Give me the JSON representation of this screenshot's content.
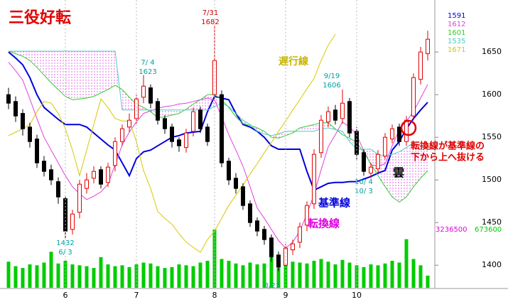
{
  "chart_data": {
    "type": "candlestick",
    "title": "三役好転",
    "categories": [
      null,
      null,
      null,
      null,
      null,
      null,
      null,
      null,
      "6",
      null,
      null,
      null,
      null,
      null,
      null,
      null,
      null,
      null,
      "7",
      null,
      null,
      null,
      null,
      null,
      null,
      null,
      null,
      null,
      null,
      "8",
      null,
      null,
      null,
      null,
      null,
      null,
      null,
      null,
      null,
      "9",
      null,
      null,
      null,
      null,
      null,
      null,
      null,
      null,
      null,
      "10",
      null,
      null,
      null,
      null,
      null,
      null,
      null,
      null,
      null,
      null
    ],
    "open": [
      1600,
      1592,
      1578,
      1562,
      1548,
      1522,
      1512,
      1498,
      1478,
      1442,
      1462,
      1490,
      1502,
      1512,
      1497,
      1517,
      1545,
      1562,
      1572,
      1597,
      1608,
      1592,
      1572,
      1562,
      1547,
      1538,
      1557,
      1582,
      1562,
      1600,
      1600,
      1522,
      1502,
      1492,
      1472,
      1452,
      1442,
      1432,
      1412,
      1400,
      1418,
      1427,
      1447,
      1472,
      1532,
      1568,
      1582,
      1572,
      1592,
      1557,
      1532,
      1508,
      1513,
      1528,
      1548,
      1562,
      1545,
      1575,
      1618,
      1648
    ],
    "high": [
      1608,
      1598,
      1583,
      1567,
      1553,
      1528,
      1518,
      1503,
      1482,
      1465,
      1500,
      1508,
      1516,
      1516,
      1520,
      1550,
      1565,
      1578,
      1600,
      1623,
      1612,
      1596,
      1576,
      1566,
      1550,
      1560,
      1585,
      1586,
      1566,
      1682,
      1605,
      1526,
      1508,
      1496,
      1476,
      1456,
      1446,
      1436,
      1416,
      1425,
      1430,
      1450,
      1475,
      1536,
      1576,
      1586,
      1588,
      1606,
      1596,
      1562,
      1536,
      1520,
      1535,
      1555,
      1565,
      1566,
      1575,
      1625,
      1656,
      1675
    ],
    "low": [
      1583,
      1568,
      1552,
      1538,
      1514,
      1504,
      1494,
      1472,
      1432,
      1436,
      1455,
      1484,
      1496,
      1490,
      1492,
      1510,
      1540,
      1556,
      1566,
      1590,
      1584,
      1565,
      1554,
      1538,
      1533,
      1532,
      1551,
      1555,
      1540,
      1595,
      1515,
      1494,
      1484,
      1465,
      1445,
      1434,
      1424,
      1404,
      1393,
      1396,
      1412,
      1420,
      1440,
      1466,
      1526,
      1562,
      1565,
      1566,
      1550,
      1524,
      1505,
      1502,
      1508,
      1524,
      1543,
      1540,
      1540,
      1570,
      1612,
      1640
    ],
    "close": [
      1590,
      1575,
      1560,
      1545,
      1520,
      1510,
      1500,
      1480,
      1440,
      1460,
      1495,
      1500,
      1510,
      1495,
      1515,
      1545,
      1560,
      1570,
      1595,
      1610,
      1590,
      1570,
      1560,
      1545,
      1540,
      1555,
      1580,
      1560,
      1545,
      1640,
      1520,
      1500,
      1490,
      1470,
      1450,
      1440,
      1430,
      1410,
      1398,
      1420,
      1425,
      1445,
      1470,
      1530,
      1570,
      1580,
      1570,
      1590,
      1555,
      1530,
      1510,
      1515,
      1530,
      1550,
      1560,
      1545,
      1570,
      1620,
      1650,
      1665
    ],
    "up_color": "#e00000",
    "down_color": "#000000",
    "volume": [
      1450000,
      1200000,
      1100000,
      1300000,
      1250000,
      1400000,
      2000000,
      1350000,
      1500000,
      1300000,
      1250000,
      1200000,
      1100000,
      1700000,
      1300000,
      1200000,
      1250000,
      1150000,
      1300000,
      1400000,
      1350000,
      1200000,
      1100000,
      1150000,
      1300000,
      1250000,
      1200000,
      1400000,
      1500000,
      3236500,
      1600000,
      1500000,
      1350000,
      1250000,
      1400000,
      1300000,
      1350000,
      1900000,
      1500000,
      1300000,
      1450000,
      1400000,
      1350000,
      1500000,
      1600000,
      1450000,
      1300000,
      1550000,
      1400000,
      1250000,
      1150000,
      1300000,
      1250000,
      1350000,
      1500000,
      1400000,
      2700000,
      1600000,
      1250000,
      673600
    ],
    "volume_color": "#00cc00",
    "volume_max_color": "#e000e0",
    "ylim": [
      1373,
      1711
    ],
    "yticks": [
      1400,
      1450,
      1500,
      1550,
      1600,
      1650
    ],
    "lines": [
      {
        "legend_value": 1591,
        "color": "#0000dd",
        "width": 2,
        "values": [
          1650,
          1643,
          1635,
          1620,
          1600,
          1585,
          1578,
          1571,
          1565,
          1565,
          1565,
          1562,
          1555,
          1548,
          1541,
          1535,
          1520,
          1505,
          1525,
          1533,
          1535,
          1540,
          1545,
          1550,
          1552,
          1555,
          1556,
          1557,
          1580,
          1598,
          1596,
          1594,
          1578,
          1565,
          1562,
          1557,
          1550,
          1540,
          1536,
          1536,
          1536,
          1536,
          1510,
          1488,
          1492,
          1496,
          1497,
          1497,
          1498,
          1498,
          1501,
          1504,
          1508,
          1511,
          1535,
          1545,
          1560,
          1572,
          1582,
          1591
        ]
      },
      {
        "legend_value": 1612,
        "color": "#e040e0",
        "width": 1,
        "values": [
          1638,
          1628,
          1617,
          1595,
          1572,
          1550,
          1535,
          1520,
          1505,
          1492,
          1484,
          1477,
          1481,
          1486,
          1495,
          1518,
          1541,
          1556,
          1568,
          1578,
          1581,
          1584,
          1586,
          1587,
          1589,
          1590,
          1592,
          1594,
          1596,
          1594,
          1574,
          1553,
          1535,
          1516,
          1492,
          1467,
          1455,
          1442,
          1429,
          1420,
          1427,
          1440,
          1460,
          1483,
          1512,
          1539,
          1553,
          1568,
          1562,
          1553,
          1534,
          1518,
          1516,
          1519,
          1540,
          1559,
          1569,
          1580,
          1596,
          1612
        ]
      },
      {
        "legend_value": 1601,
        "color": "#33cc33",
        "width": 1,
        "values": [
          1651,
          1648,
          1645,
          1640,
          1632,
          1623,
          1614,
          1606,
          1598,
          1594,
          1595,
          1596,
          1598,
          1602,
          1606,
          1611,
          1606,
          1597,
          1589,
          1585,
          1580,
          1573,
          1574,
          1576,
          1578,
          1583,
          1589,
          1594,
          1600,
          1600,
          1594,
          1585,
          1574,
          1566,
          1564,
          1561,
          1557,
          1550,
          1549,
          1552,
          1555,
          1561,
          1563,
          1565,
          1567,
          1567,
          1560,
          1553,
          1549,
          1544,
          1532,
          1519,
          1505,
          1492,
          1480,
          1474,
          1480,
          1492,
          1502,
          1511
        ]
      },
      {
        "legend_value": 1535,
        "color": "#55c8c8",
        "width": 1,
        "values": [
          1651,
          1651,
          1651,
          1651,
          1651,
          1651,
          1651,
          1651,
          1651,
          1651,
          1651,
          1651,
          1651,
          1651,
          1651,
          1651,
          1582,
          1582,
          1582,
          1582,
          1582,
          1582,
          1582,
          1582,
          1582,
          1582,
          1582,
          1582,
          1582,
          1586,
          1590,
          1586,
          1578,
          1570,
          1565,
          1557,
          1554,
          1552,
          1554,
          1557,
          1557,
          1557,
          1557,
          1557,
          1560,
          1561,
          1559,
          1557,
          1545,
          1536,
          1536,
          1536,
          1530,
          1528,
          1530,
          1533,
          1538,
          1544,
          1540,
          1535
        ]
      },
      {
        "legend_value": 1671,
        "color": "#d8c800",
        "width": 1,
        "values": [
          1552,
          1556,
          1560,
          1565,
          1580,
          1592,
          1590,
          1578,
          1560,
          1535,
          1505,
          1535,
          1565,
          1595,
          1585,
          1572,
          1569,
          1569,
          1545,
          1511,
          1490,
          1463,
          1455,
          1448,
          1437,
          1427,
          1421,
          1415,
          1430,
          1440,
          1455,
          1470,
          1482,
          1494,
          1507,
          1519,
          1532,
          1544,
          1557,
          1569,
          1582,
          1594,
          1607,
          1619,
          1640,
          1658,
          1671,
          null,
          null,
          null,
          null,
          null,
          null,
          null,
          null,
          null,
          null,
          null,
          null,
          null
        ]
      }
    ],
    "cloud": {
      "between": [
        2,
        3
      ],
      "color": "#e040e0"
    },
    "annotations": [
      {
        "text": [
          "7/31",
          "1682"
        ],
        "color": "#d00000"
      },
      {
        "text": [
          "7/ 4",
          "1623"
        ],
        "color": "#00a0a0"
      },
      {
        "text": [
          "9/19",
          "1606"
        ],
        "color": "#00a0a0"
      },
      {
        "text": [
          "1432",
          "6/ 3"
        ],
        "color": "#00a0a0"
      },
      {
        "text": [
          "10/ 4",
          "10/ 3"
        ],
        "color": "#00a0a0"
      },
      {
        "text": [
          "8/23"
        ],
        "color": "#00a0a0"
      },
      {
        "text": [
          "遅行線"
        ],
        "color": "#c8b400"
      },
      {
        "text": [
          "基準線"
        ],
        "color": "#0000dd"
      },
      {
        "text": [
          "転換線"
        ],
        "color": "#e000e0"
      },
      {
        "text": [
          "雲"
        ],
        "color": "#000000"
      },
      {
        "text": [
          "転換線が基準線の",
          "下から上へ抜ける"
        ],
        "color": "#e00000"
      }
    ]
  }
}
